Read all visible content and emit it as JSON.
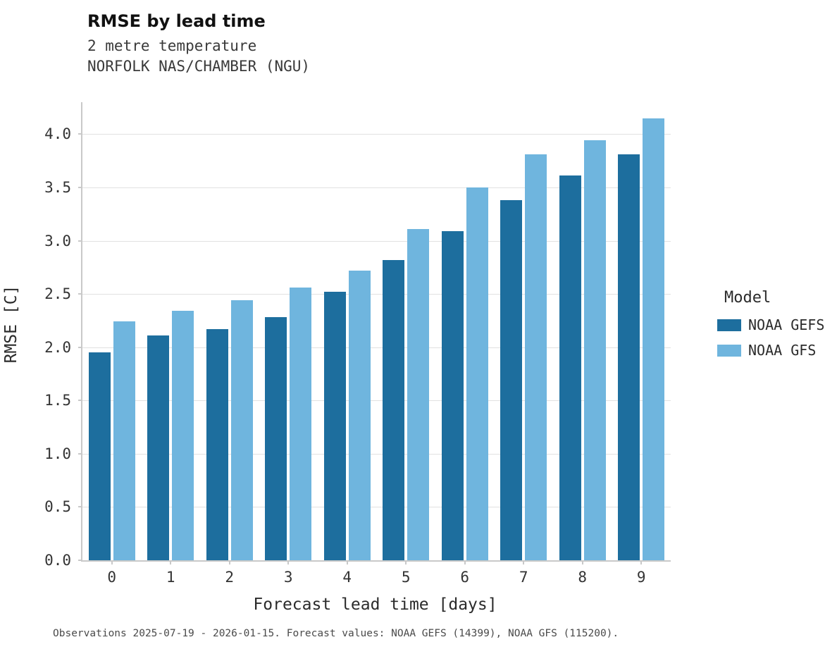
{
  "title": "RMSE by lead time",
  "subtitle_line1": "2 metre temperature",
  "subtitle_line2": "NORFOLK NAS/CHAMBER (NGU)",
  "footnote": "Observations 2025-07-19 - 2026-01-15. Forecast values: NOAA GEFS (14399), NOAA GFS (115200).",
  "legend": {
    "title": "Model"
  },
  "chart_data": {
    "type": "bar",
    "title": "RMSE by lead time",
    "xlabel": "Forecast lead time [days]",
    "ylabel": "RMSE [C]",
    "categories": [
      "0",
      "1",
      "2",
      "3",
      "4",
      "5",
      "6",
      "7",
      "8",
      "9"
    ],
    "series": [
      {
        "name": "NOAA GEFS",
        "color": "#1d6e9e",
        "values": [
          1.95,
          2.11,
          2.17,
          2.28,
          2.52,
          2.82,
          3.09,
          3.38,
          3.61,
          3.81
        ]
      },
      {
        "name": "NOAA GFS",
        "color": "#6fb5de",
        "values": [
          2.24,
          2.34,
          2.44,
          2.56,
          2.72,
          3.11,
          3.5,
          3.81,
          3.94,
          4.15
        ]
      }
    ],
    "ylim": [
      0,
      4.3
    ],
    "ytick_step": 0.5,
    "ytick_max": 4.0,
    "grid": true,
    "legend_position": "right"
  }
}
